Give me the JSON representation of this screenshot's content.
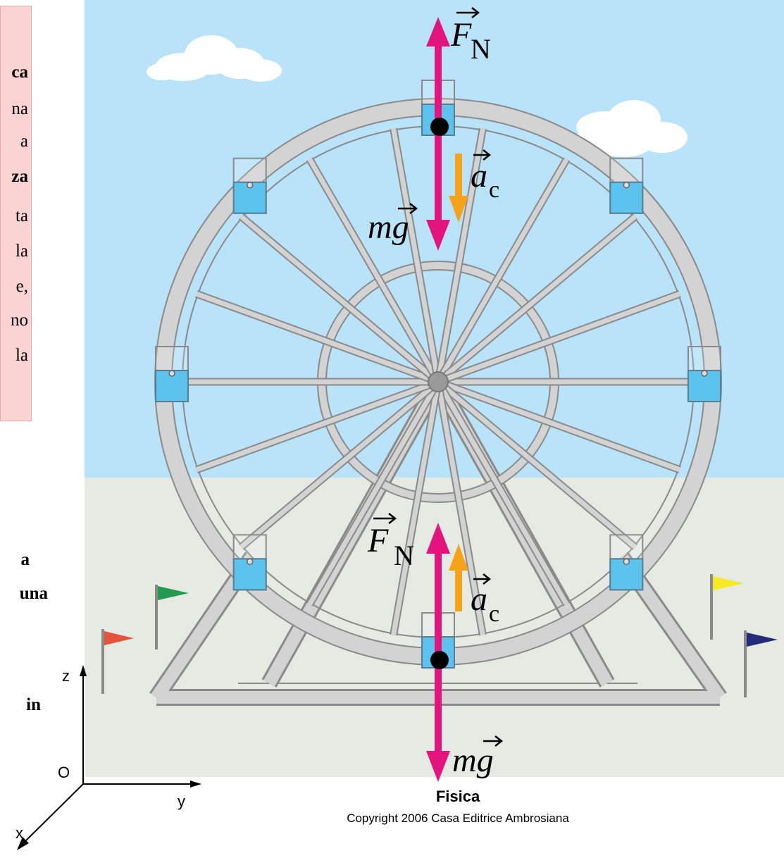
{
  "left_text": {
    "box_fragments": [
      "ca",
      "na",
      "a",
      "za",
      "ta",
      "la",
      "e,",
      "no",
      "la"
    ],
    "bottom_fragments": [
      "a",
      "una",
      "in"
    ]
  },
  "diagram": {
    "top": {
      "normal_force": "F",
      "normal_sub": "N",
      "weight": "mg",
      "accel": "a",
      "accel_sub": "c"
    },
    "bottom": {
      "normal_force": "F",
      "normal_sub": "N",
      "weight": "mg",
      "accel": "a",
      "accel_sub": "c"
    },
    "axes": {
      "z": "z",
      "y": "y",
      "x": "x",
      "origin": "O"
    },
    "colors": {
      "force": "#e3147d",
      "accel": "#f7a21b",
      "sky": "#b8e3f8",
      "ground": "#e5eae3",
      "wheel": "#d3d3d3",
      "cabin": "#5bc3ee"
    }
  },
  "caption": {
    "title": "Fisica",
    "copyright": "Copyright 2006 Casa Editrice Ambrosiana"
  }
}
